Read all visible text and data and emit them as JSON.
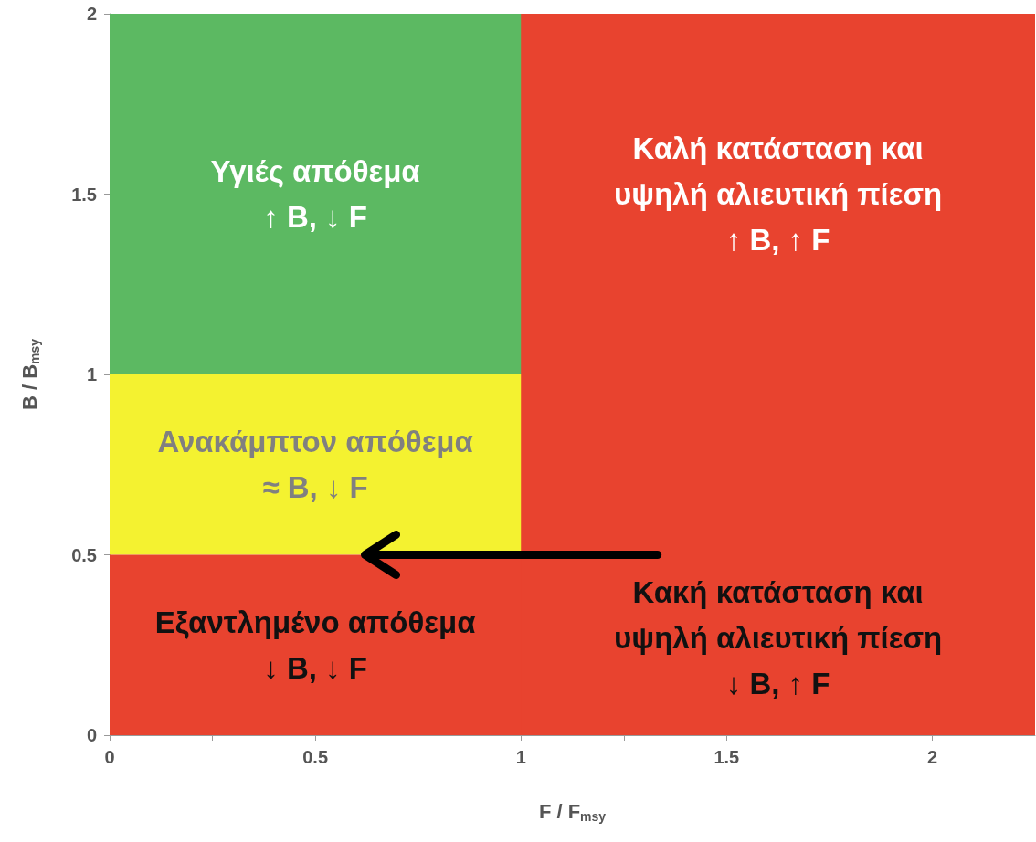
{
  "chart_data": {
    "type": "scatter",
    "xlabel": "F / F$_{msy}$",
    "ylabel": "B / B$_{msy}$",
    "xlim": [
      0,
      2.25
    ],
    "xticks": [
      0,
      {
        "value": 0.25,
        "label": null
      },
      0.5,
      {
        "value": 0.75,
        "label": null
      },
      1,
      {
        "value": 1.25,
        "label": null
      },
      1.5,
      {
        "value": 1.75,
        "label": null
      },
      2
    ],
    "ylim": [
      0,
      2
    ],
    "yticks": [
      0,
      0.5,
      1,
      1.5,
      2
    ],
    "bands": [
      {
        "axis": "y",
        "from": 1,
        "to": 2,
        "label": "Υγιές απόθεμα\n↑ B, ↓ F",
        "color": "#5cb962"
      },
      {
        "axis": "y",
        "from": 0.5,
        "to": 1,
        "label": "Ανακάμπτον απόθεμα\n≈ B, ↓ F",
        "color": "#f4f230"
      },
      {
        "axis": "y",
        "from": 0,
        "to": 0.5,
        "label": "Εξαντλημένο απόθεμα\n↓ B, ↓ F",
        "color": "#e8432f"
      },
      {
        "axis": "x",
        "from": 1,
        "to": 2.25,
        "label": "Καλή κατάσταση και\nυψηλή αλιευτική πίεση\n↑ B, ↑ F",
        "color": "#e8432f"
      }
    ],
    "annotations": [
      "Κακή κατάσταση και\nυψηλή αλιευτική πίεση\n↓ B, ↑ F"
    ]
  }
}
